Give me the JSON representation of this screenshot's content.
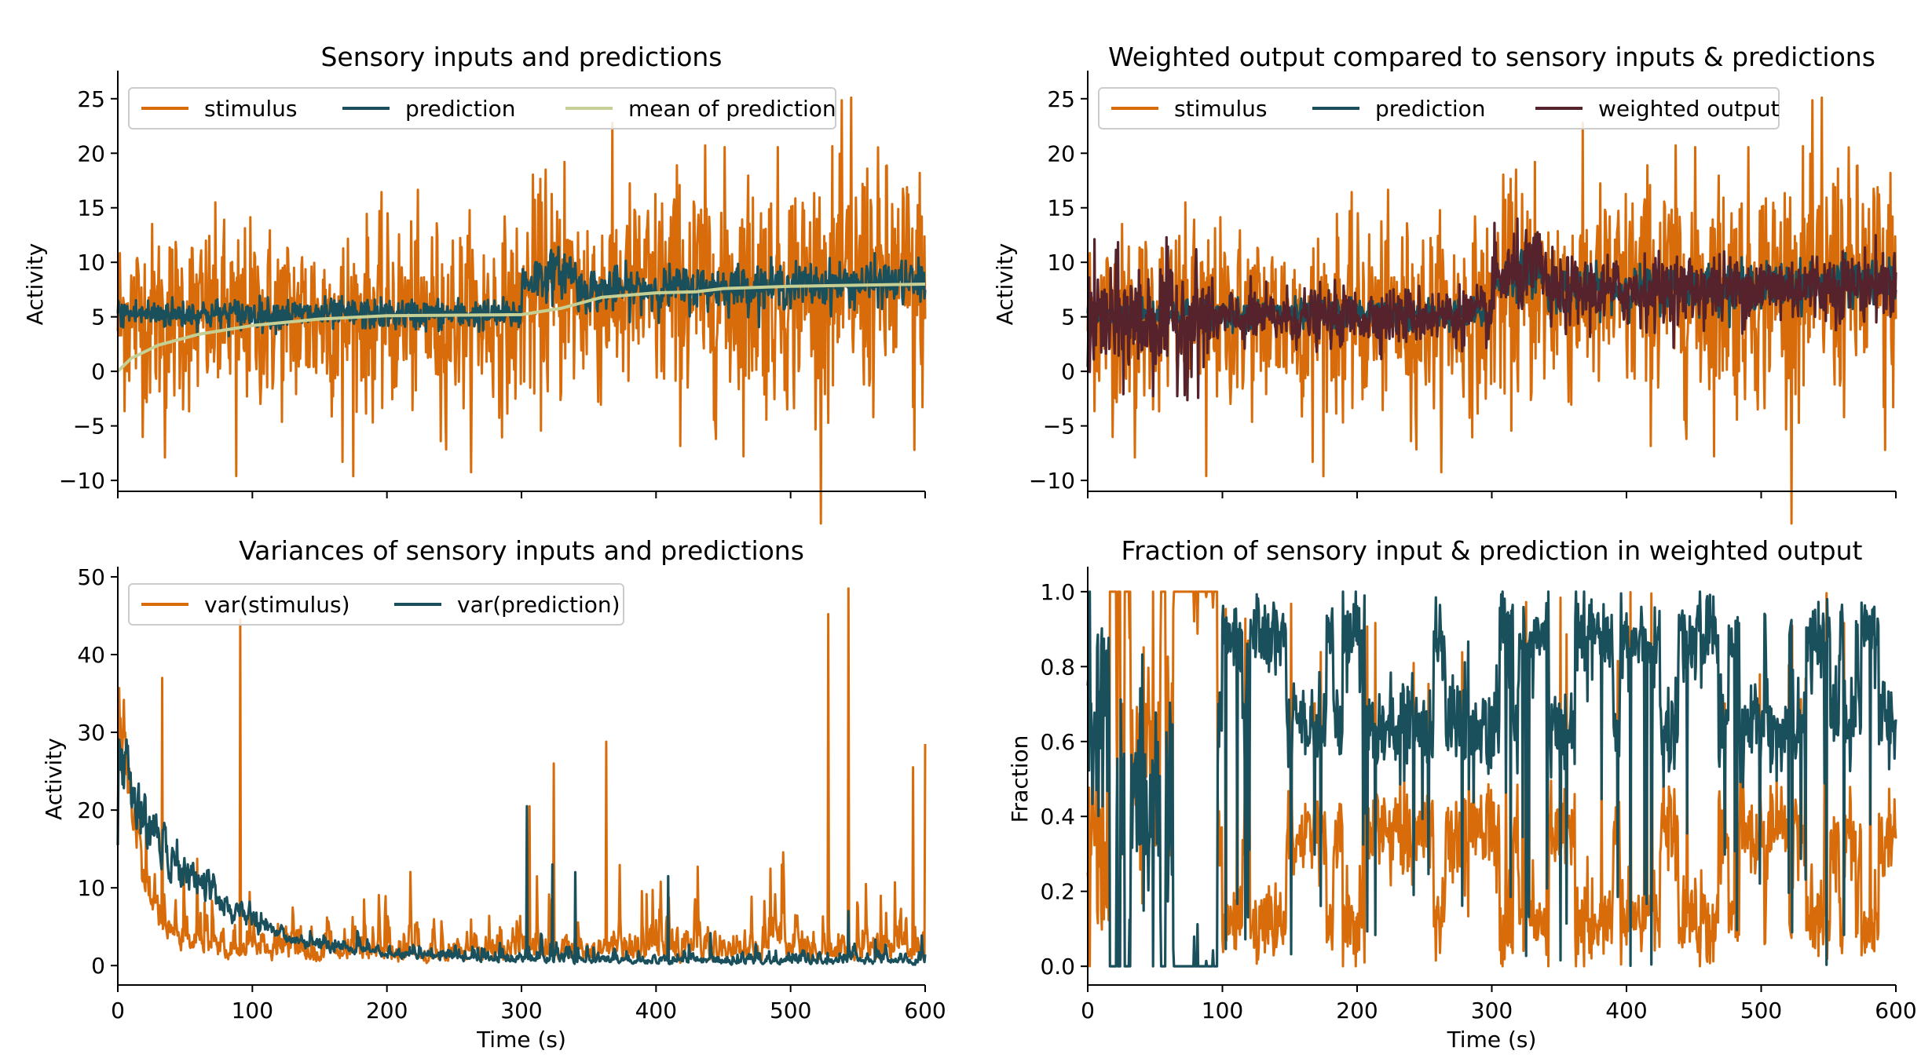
{
  "colors": {
    "stimulus": "#d86c0a",
    "prediction": "#1a4f5c",
    "mean_prediction": "#c6cf94",
    "weighted_output": "#56222b"
  },
  "chart_data": [
    {
      "id": "panel-1",
      "type": "line",
      "title": "Sensory inputs and predictions",
      "xlabel": "",
      "ylabel": "Activity",
      "xlim": [
        0,
        600
      ],
      "ylim": [
        -11,
        27
      ],
      "xticks": [
        0,
        100,
        200,
        300,
        400,
        500,
        600
      ],
      "xtick_labels_shown": false,
      "yticks": [
        -10,
        -5,
        0,
        5,
        10,
        15,
        20,
        25
      ],
      "ytick_labels": [
        "−10",
        "−5",
        "0",
        "5",
        "10",
        "15",
        "20",
        "25"
      ],
      "grid": false,
      "legend": {
        "placement": "top-left",
        "ncol": 3,
        "entries": [
          "stimulus",
          "prediction",
          "mean of prediction"
        ]
      },
      "series": [
        {
          "name": "stimulus",
          "color_key": "stimulus",
          "segments": [
            [
              0,
              5,
              300,
              5,
              4.2
            ],
            [
              300,
              6.8,
              400,
              7.2,
              4.8
            ],
            [
              400,
              7.4,
              600,
              8,
              5.4
            ]
          ],
          "spikes": [
            [
              545,
              25.1
            ],
            [
              332,
              19.2
            ],
            [
              318,
              18.5
            ],
            [
              557,
              18.6
            ],
            [
              88,
              -9.6
            ],
            [
              167,
              -8.3
            ],
            [
              35,
              -7.9
            ],
            [
              592,
              -7.2
            ],
            [
              240,
              -6.4
            ]
          ]
        },
        {
          "name": "prediction",
          "color_key": "prediction",
          "segments": [
            [
              0,
              5.3,
              300,
              5.2,
              0.7
            ],
            [
              300,
              8.2,
              340,
              9.4,
              1.1
            ],
            [
              340,
              7.4,
              600,
              8.2,
              1.0
            ]
          ]
        },
        {
          "name": "mean of prediction",
          "color_key": "mean_prediction",
          "points": [
            [
              0,
              0
            ],
            [
              10,
              1.2
            ],
            [
              30,
              2.4
            ],
            [
              60,
              3.4
            ],
            [
              100,
              4.2
            ],
            [
              150,
              4.8
            ],
            [
              200,
              5.1
            ],
            [
              300,
              5.2
            ],
            [
              330,
              5.8
            ],
            [
              360,
              6.8
            ],
            [
              400,
              7.2
            ],
            [
              430,
              7.3
            ],
            [
              450,
              7.6
            ],
            [
              500,
              7.8
            ],
            [
              600,
              8
            ]
          ]
        }
      ]
    },
    {
      "id": "panel-2",
      "type": "line",
      "title": "Weighted output compared to sensory inputs & predictions",
      "xlabel": "",
      "ylabel": "Activity",
      "xlim": [
        0,
        600
      ],
      "ylim": [
        -11,
        27
      ],
      "xticks": [
        0,
        100,
        200,
        300,
        400,
        500,
        600
      ],
      "xtick_labels_shown": false,
      "yticks": [
        -10,
        -5,
        0,
        5,
        10,
        15,
        20,
        25
      ],
      "ytick_labels": [
        "−10",
        "−5",
        "0",
        "5",
        "10",
        "15",
        "20",
        "25"
      ],
      "grid": false,
      "legend": {
        "placement": "top-left",
        "ncol": 3,
        "entries": [
          "stimulus",
          "prediction",
          "weighted output"
        ]
      },
      "series": [
        {
          "name": "stimulus",
          "color_key": "stimulus",
          "segments": [
            [
              0,
              5,
              300,
              5,
              4.2
            ],
            [
              300,
              6.8,
              400,
              7.2,
              4.8
            ],
            [
              400,
              7.4,
              600,
              8,
              5.4
            ]
          ],
          "spikes": [
            [
              545,
              25.1
            ],
            [
              332,
              19.2
            ],
            [
              318,
              18.5
            ],
            [
              557,
              18.6
            ],
            [
              88,
              -9.6
            ],
            [
              167,
              -8.3
            ],
            [
              35,
              -7.9
            ],
            [
              592,
              -7.2
            ],
            [
              240,
              -6.4
            ]
          ]
        },
        {
          "name": "prediction",
          "color_key": "prediction",
          "segments": [
            [
              0,
              5.3,
              300,
              5.2,
              0.7
            ],
            [
              300,
              8.2,
              340,
              9.4,
              1.1
            ],
            [
              340,
              7.4,
              600,
              8.2,
              1.0
            ]
          ]
        },
        {
          "name": "weighted output",
          "color_key": "weighted_output",
          "segments": [
            [
              0,
              4.5,
              90,
              4.8,
              2.8
            ],
            [
              90,
              4.8,
              300,
              5.2,
              1.3
            ],
            [
              300,
              8.4,
              340,
              9.6,
              1.8
            ],
            [
              340,
              7.2,
              600,
              8.0,
              1.6
            ]
          ]
        }
      ]
    },
    {
      "id": "panel-3",
      "type": "line",
      "title": "Variances of sensory inputs and predictions",
      "xlabel": "Time (s)",
      "ylabel": "Activity",
      "xlim": [
        0,
        600
      ],
      "ylim": [
        -2.5,
        50.5
      ],
      "xticks": [
        0,
        100,
        200,
        300,
        400,
        500,
        600
      ],
      "xtick_labels_shown": true,
      "yticks": [
        0,
        10,
        20,
        30,
        40,
        50
      ],
      "ytick_labels": [
        "0",
        "10",
        "20",
        "30",
        "40",
        "50"
      ],
      "grid": false,
      "legend": {
        "placement": "top-left",
        "ncol": 2,
        "entries": [
          "var(stimulus)",
          "var(prediction)"
        ]
      },
      "series": [
        {
          "name": "var(stimulus)",
          "color_key": "stimulus",
          "decay": [
            0,
            40,
            15
          ],
          "spikes": [
            [
              91,
              44.5
            ],
            [
              543,
              48.5
            ],
            [
              528,
              45.2
            ],
            [
              33,
              37
            ],
            [
              600,
              28.5
            ],
            [
              591,
              25.5
            ],
            [
              363,
              28.8
            ],
            [
              306,
              20.5
            ],
            [
              324,
              26
            ]
          ],
          "base_level": 2.5
        },
        {
          "name": "var(prediction)",
          "color_key": "prediction",
          "decay": [
            0,
            30.5,
            60
          ],
          "spikes": [
            [
              304,
              20.5
            ],
            [
              323,
              13
            ],
            [
              340,
              12
            ],
            [
              409,
              11.5
            ],
            [
              543,
              7
            ]
          ],
          "base_level": 0.9
        }
      ]
    },
    {
      "id": "panel-4",
      "type": "line",
      "title": "Fraction of sensory input & prediction in weighted output",
      "xlabel": "Time (s)",
      "ylabel": "Fraction",
      "xlim": [
        0,
        600
      ],
      "ylim": [
        -0.05,
        1.05
      ],
      "xticks": [
        0,
        100,
        200,
        300,
        400,
        500,
        600
      ],
      "xtick_labels_shown": true,
      "yticks": [
        0.0,
        0.2,
        0.4,
        0.6,
        0.8,
        1.0
      ],
      "ytick_labels": [
        "0.0",
        "0.2",
        "0.4",
        "0.6",
        "0.8",
        "1.0"
      ],
      "grid": false,
      "legend": null,
      "series": [
        {
          "name": "",
          "color_key": "stimulus",
          "role": "stimulus fraction",
          "regimes": [
            [
              0,
              90,
              0.55,
              0.35
            ],
            [
              90,
              560,
              0.12,
              0.12
            ],
            [
              560,
              600,
              0.1,
              0.12
            ]
          ]
        },
        {
          "name": "",
          "color_key": "prediction",
          "role": "prediction fraction",
          "complement_of": 0
        }
      ]
    }
  ]
}
